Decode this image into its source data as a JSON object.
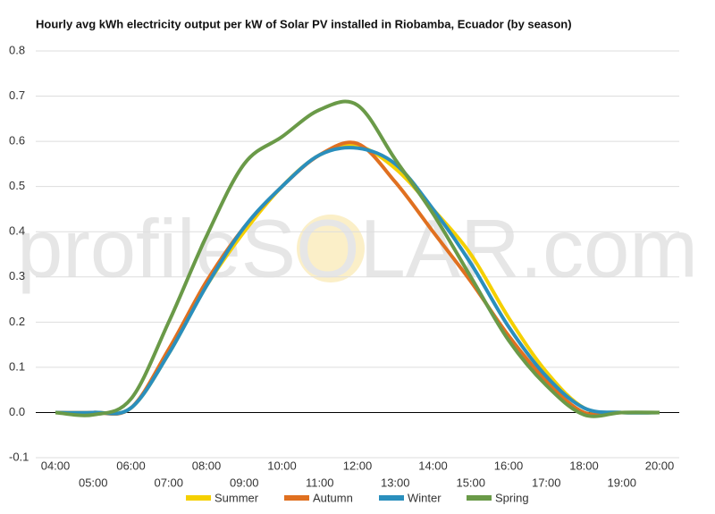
{
  "chart_data": {
    "type": "line",
    "title": "Hourly avg kWh electricity output per kW of Solar PV installed in Riobamba, Ecuador (by season)",
    "watermark": "profileSOLAR.com",
    "categories": [
      "04:00",
      "05:00",
      "06:00",
      "07:00",
      "08:00",
      "09:00",
      "10:00",
      "11:00",
      "12:00",
      "13:00",
      "14:00",
      "15:00",
      "16:00",
      "17:00",
      "18:00",
      "19:00",
      "20:00"
    ],
    "series": [
      {
        "name": "Summer",
        "color": "#f5d000",
        "values": [
          0,
          0,
          0.01,
          0.13,
          0.28,
          0.4,
          0.5,
          0.57,
          0.59,
          0.54,
          0.45,
          0.35,
          0.21,
          0.09,
          0.01,
          0,
          0
        ]
      },
      {
        "name": "Autumn",
        "color": "#e07020",
        "values": [
          0,
          0,
          0.01,
          0.14,
          0.29,
          0.41,
          0.5,
          0.57,
          0.595,
          0.51,
          0.4,
          0.29,
          0.17,
          0.07,
          0,
          0,
          0
        ]
      },
      {
        "name": "Winter",
        "color": "#2a8fbd",
        "values": [
          0,
          0,
          0.01,
          0.13,
          0.28,
          0.41,
          0.5,
          0.57,
          0.585,
          0.55,
          0.45,
          0.33,
          0.19,
          0.08,
          0.01,
          0,
          0
        ]
      },
      {
        "name": "Spring",
        "color": "#6a9a48",
        "values": [
          0,
          -0.005,
          0.03,
          0.2,
          0.39,
          0.55,
          0.61,
          0.67,
          0.68,
          0.56,
          0.44,
          0.3,
          0.16,
          0.06,
          -0.005,
          0,
          0
        ]
      }
    ],
    "ylim": [
      -0.1,
      0.8
    ],
    "yticks": [
      -0.1,
      {
        "value": 0,
        "label": "0.0"
      },
      0.1,
      0.2,
      0.3,
      0.4,
      0.5,
      0.6,
      0.7,
      0.8
    ],
    "grid": true,
    "legend": "bottom"
  }
}
